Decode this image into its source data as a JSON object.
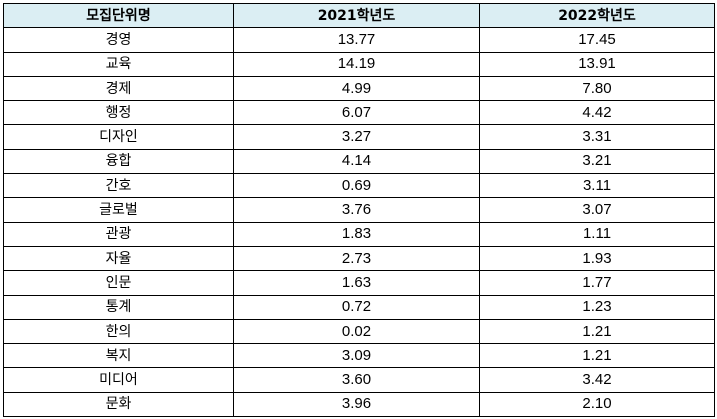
{
  "table": {
    "headers": [
      "모집단위명",
      "2021학년도",
      "2022학년도"
    ],
    "rows": [
      [
        "경영",
        "13.77",
        "17.45"
      ],
      [
        "교육",
        "14.19",
        "13.91"
      ],
      [
        "경제",
        "4.99",
        "7.80"
      ],
      [
        "행정",
        "6.07",
        "4.42"
      ],
      [
        "디자인",
        "3.27",
        "3.31"
      ],
      [
        "융합",
        "4.14",
        "3.21"
      ],
      [
        "간호",
        "0.69",
        "3.11"
      ],
      [
        "글로벌",
        "3.76",
        "3.07"
      ],
      [
        "관광",
        "1.83",
        "1.11"
      ],
      [
        "자율",
        "2.73",
        "1.93"
      ],
      [
        "인문",
        "1.63",
        "1.77"
      ],
      [
        "통계",
        "0.72",
        "1.23"
      ],
      [
        "한의",
        "0.02",
        "1.21"
      ],
      [
        "복지",
        "3.09",
        "1.21"
      ],
      [
        "미디어",
        "3.60",
        "3.42"
      ],
      [
        "문화",
        "3.96",
        "2.10"
      ]
    ]
  },
  "colors": {
    "header_background": "#dbeef3",
    "border": "#000000",
    "text": "#000000"
  }
}
